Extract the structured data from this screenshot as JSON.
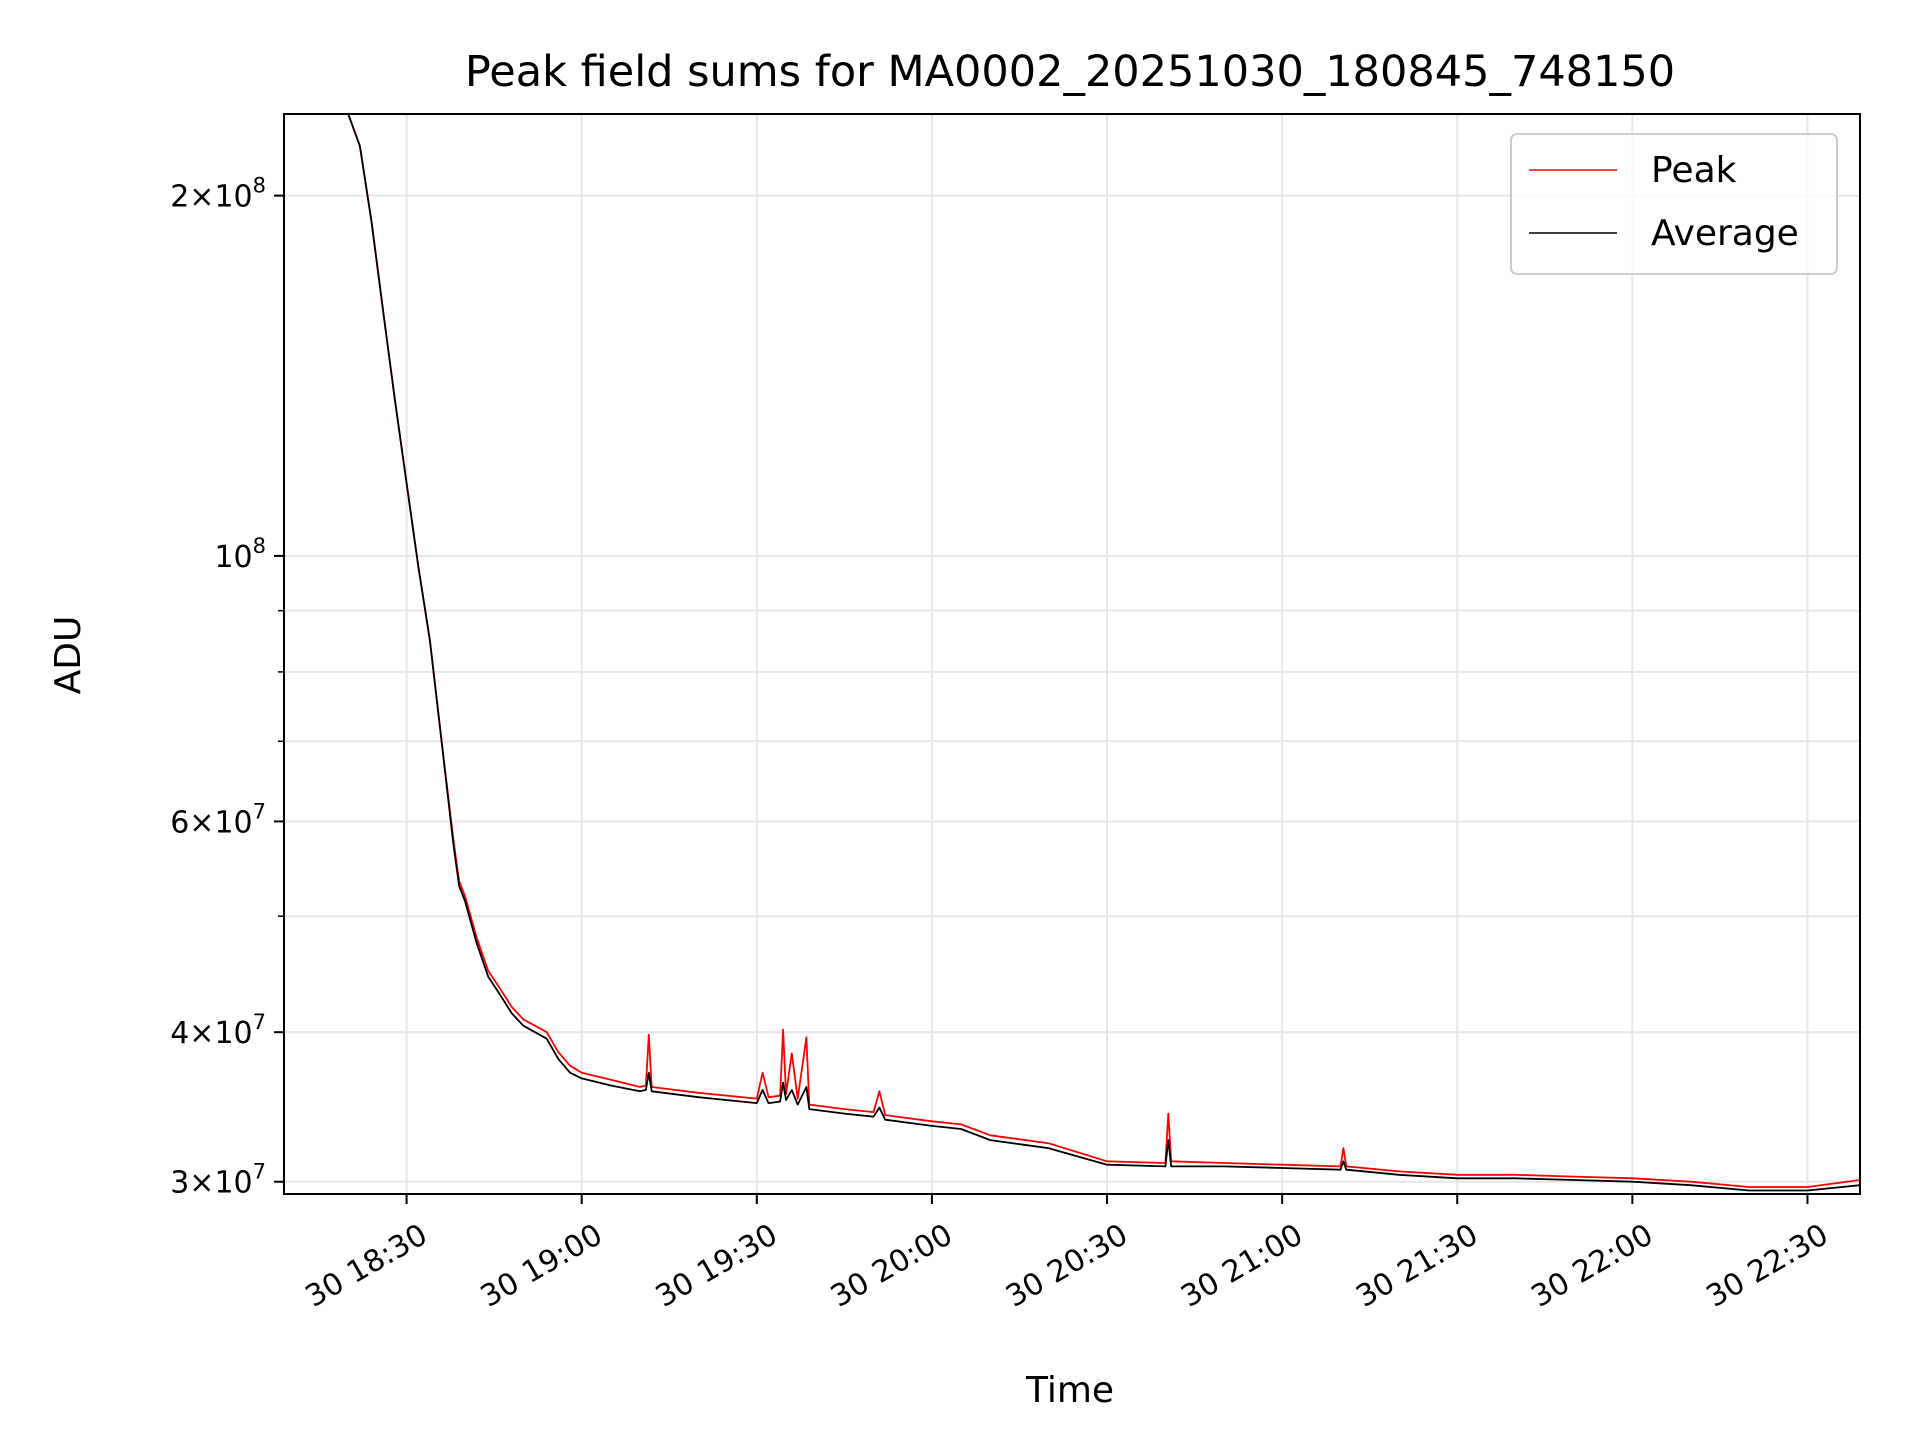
{
  "chart_data": {
    "type": "line",
    "title": "Peak field sums for MA0002_20251030_180845_748150",
    "xlabel": "Time",
    "ylabel": "ADU",
    "y_scale": "log",
    "grid": true,
    "legend_position": "top-right",
    "x_range": [
      "2025-10-30 18:09",
      "2025-10-30 22:39"
    ],
    "ylim": [
      29300000,
      234000000
    ],
    "x_tick_labels": [
      "30 18:30",
      "30 19:00",
      "30 19:30",
      "30 20:00",
      "30 20:30",
      "30 21:00",
      "30 21:30",
      "30 22:00",
      "30 22:30"
    ],
    "x_tick_values": [
      "2025-10-30 18:30",
      "2025-10-30 19:00",
      "2025-10-30 19:30",
      "2025-10-30 20:00",
      "2025-10-30 20:30",
      "2025-10-30 21:00",
      "2025-10-30 21:30",
      "2025-10-30 22:00",
      "2025-10-30 22:30"
    ],
    "y_ticks": [
      {
        "value": 200000000,
        "mantissa": "2",
        "exp": "8"
      },
      {
        "value": 100000000,
        "mantissa": "",
        "exp": "8"
      },
      {
        "value": 60000000,
        "mantissa": "6",
        "exp": "7"
      },
      {
        "value": 40000000,
        "mantissa": "4",
        "exp": "7"
      },
      {
        "value": 30000000,
        "mantissa": "3",
        "exp": "7"
      }
    ],
    "y_minor_ticks": [
      50000000,
      70000000,
      80000000,
      90000000
    ],
    "series": [
      {
        "name": "Peak",
        "color": "#ff0000",
        "points": [
          [
            "2025-10-30 18:09",
            234000000
          ],
          [
            "2025-10-30 18:20",
            234000000
          ],
          [
            "2025-10-30 18:22",
            220000000
          ],
          [
            "2025-10-30 18:24",
            190000000
          ],
          [
            "2025-10-30 18:26",
            160000000
          ],
          [
            "2025-10-30 18:28",
            135000000
          ],
          [
            "2025-10-30 18:30",
            115000000
          ],
          [
            "2025-10-30 18:32",
            98000000
          ],
          [
            "2025-10-30 18:34",
            85000000
          ],
          [
            "2025-10-30 18:36",
            70000000
          ],
          [
            "2025-10-30 18:38",
            58000000
          ],
          [
            "2025-10-30 18:39",
            53500000
          ],
          [
            "2025-10-30 18:40",
            52000000
          ],
          [
            "2025-10-30 18:42",
            48000000
          ],
          [
            "2025-10-30 18:44",
            45000000
          ],
          [
            "2025-10-30 18:46",
            43500000
          ],
          [
            "2025-10-30 18:48",
            42000000
          ],
          [
            "2025-10-30 18:50",
            41000000
          ],
          [
            "2025-10-30 18:52",
            40500000
          ],
          [
            "2025-10-30 18:54",
            40000000
          ],
          [
            "2025-10-30 18:56",
            38500000
          ],
          [
            "2025-10-30 18:58",
            37500000
          ],
          [
            "2025-10-30 19:00",
            37000000
          ],
          [
            "2025-10-30 19:05",
            36500000
          ],
          [
            "2025-10-30 19:10",
            36000000
          ],
          [
            "2025-10-30 19:11",
            36100000
          ],
          [
            "2025-10-30 19:11.5",
            39800000
          ],
          [
            "2025-10-30 19:12",
            36000000
          ],
          [
            "2025-10-30 19:20",
            35600000
          ],
          [
            "2025-10-30 19:30",
            35200000
          ],
          [
            "2025-10-30 19:31",
            37000000
          ],
          [
            "2025-10-30 19:32",
            35300000
          ],
          [
            "2025-10-30 19:34",
            35400000
          ],
          [
            "2025-10-30 19:34.5",
            40200000
          ],
          [
            "2025-10-30 19:35",
            35500000
          ],
          [
            "2025-10-30 19:36",
            38400000
          ],
          [
            "2025-10-30 19:37",
            35200000
          ],
          [
            "2025-10-30 19:38.5",
            39600000
          ],
          [
            "2025-10-30 19:39",
            34800000
          ],
          [
            "2025-10-30 19:45",
            34500000
          ],
          [
            "2025-10-30 19:50",
            34300000
          ],
          [
            "2025-10-30 19:51",
            35700000
          ],
          [
            "2025-10-30 19:52",
            34100000
          ],
          [
            "2025-10-30 20:00",
            33700000
          ],
          [
            "2025-10-30 20:05",
            33500000
          ],
          [
            "2025-10-30 20:10",
            32800000
          ],
          [
            "2025-10-30 20:20",
            32300000
          ],
          [
            "2025-10-30 20:30",
            31200000
          ],
          [
            "2025-10-30 20:40",
            31100000
          ],
          [
            "2025-10-30 20:40.5",
            34200000
          ],
          [
            "2025-10-30 20:41",
            31200000
          ],
          [
            "2025-10-30 20:50",
            31100000
          ],
          [
            "2025-10-30 21:00",
            31000000
          ],
          [
            "2025-10-30 21:10",
            30900000
          ],
          [
            "2025-10-30 21:10.5",
            32000000
          ],
          [
            "2025-10-30 21:11",
            30900000
          ],
          [
            "2025-10-30 21:20",
            30600000
          ],
          [
            "2025-10-30 21:30",
            30400000
          ],
          [
            "2025-10-30 21:40",
            30400000
          ],
          [
            "2025-10-30 21:50",
            30300000
          ],
          [
            "2025-10-30 22:00",
            30200000
          ],
          [
            "2025-10-30 22:10",
            30000000
          ],
          [
            "2025-10-30 22:20",
            29700000
          ],
          [
            "2025-10-30 22:30",
            29700000
          ],
          [
            "2025-10-30 22:39",
            30100000
          ]
        ]
      },
      {
        "name": "Average",
        "color": "#000000",
        "points": [
          [
            "2025-10-30 18:09",
            234000000
          ],
          [
            "2025-10-30 18:20",
            234000000
          ],
          [
            "2025-10-30 18:22",
            220000000
          ],
          [
            "2025-10-30 18:24",
            190000000
          ],
          [
            "2025-10-30 18:26",
            160000000
          ],
          [
            "2025-10-30 18:28",
            135000000
          ],
          [
            "2025-10-30 18:30",
            115000000
          ],
          [
            "2025-10-30 18:32",
            98000000
          ],
          [
            "2025-10-30 18:34",
            85000000
          ],
          [
            "2025-10-30 18:36",
            70000000
          ],
          [
            "2025-10-30 18:38",
            57500000
          ],
          [
            "2025-10-30 18:39",
            53000000
          ],
          [
            "2025-10-30 18:40",
            51500000
          ],
          [
            "2025-10-30 18:42",
            47500000
          ],
          [
            "2025-10-30 18:44",
            44500000
          ],
          [
            "2025-10-30 18:46",
            43000000
          ],
          [
            "2025-10-30 18:48",
            41500000
          ],
          [
            "2025-10-30 18:50",
            40500000
          ],
          [
            "2025-10-30 18:52",
            40000000
          ],
          [
            "2025-10-30 18:54",
            39500000
          ],
          [
            "2025-10-30 18:56",
            38000000
          ],
          [
            "2025-10-30 18:58",
            37000000
          ],
          [
            "2025-10-30 19:00",
            36600000
          ],
          [
            "2025-10-30 19:05",
            36100000
          ],
          [
            "2025-10-30 19:10",
            35700000
          ],
          [
            "2025-10-30 19:11",
            35800000
          ],
          [
            "2025-10-30 19:11.5",
            37000000
          ],
          [
            "2025-10-30 19:12",
            35700000
          ],
          [
            "2025-10-30 19:20",
            35300000
          ],
          [
            "2025-10-30 19:30",
            34900000
          ],
          [
            "2025-10-30 19:31",
            35800000
          ],
          [
            "2025-10-30 19:32",
            34900000
          ],
          [
            "2025-10-30 19:34",
            35000000
          ],
          [
            "2025-10-30 19:34.5",
            36300000
          ],
          [
            "2025-10-30 19:35",
            35100000
          ],
          [
            "2025-10-30 19:36",
            35800000
          ],
          [
            "2025-10-30 19:37",
            34800000
          ],
          [
            "2025-10-30 19:38.5",
            36000000
          ],
          [
            "2025-10-30 19:39",
            34500000
          ],
          [
            "2025-10-30 19:45",
            34200000
          ],
          [
            "2025-10-30 19:50",
            34000000
          ],
          [
            "2025-10-30 19:51",
            34600000
          ],
          [
            "2025-10-30 19:52",
            33800000
          ],
          [
            "2025-10-30 20:00",
            33400000
          ],
          [
            "2025-10-30 20:05",
            33200000
          ],
          [
            "2025-10-30 20:10",
            32500000
          ],
          [
            "2025-10-30 20:20",
            32000000
          ],
          [
            "2025-10-30 20:30",
            31000000
          ],
          [
            "2025-10-30 20:40",
            30900000
          ],
          [
            "2025-10-30 20:40.5",
            32500000
          ],
          [
            "2025-10-30 20:41",
            30900000
          ],
          [
            "2025-10-30 20:50",
            30900000
          ],
          [
            "2025-10-30 21:00",
            30800000
          ],
          [
            "2025-10-30 21:10",
            30700000
          ],
          [
            "2025-10-30 21:10.5",
            31200000
          ],
          [
            "2025-10-30 21:11",
            30700000
          ],
          [
            "2025-10-30 21:20",
            30400000
          ],
          [
            "2025-10-30 21:30",
            30200000
          ],
          [
            "2025-10-30 21:40",
            30200000
          ],
          [
            "2025-10-30 21:50",
            30100000
          ],
          [
            "2025-10-30 22:00",
            30000000
          ],
          [
            "2025-10-30 22:10",
            29800000
          ],
          [
            "2025-10-30 22:20",
            29500000
          ],
          [
            "2025-10-30 22:30",
            29500000
          ],
          [
            "2025-10-30 22:39",
            29800000
          ]
        ]
      }
    ]
  }
}
